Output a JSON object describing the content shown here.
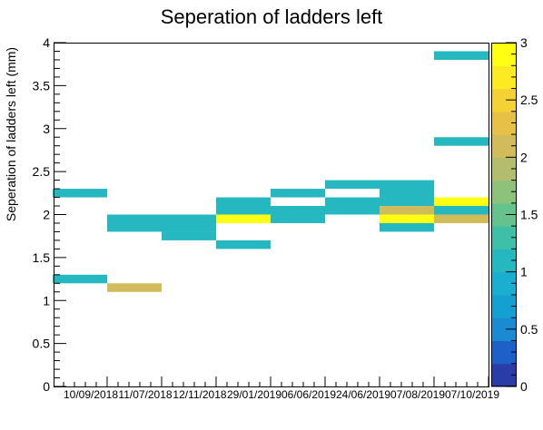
{
  "chart_data": {
    "type": "heatmap",
    "title": "Seperation of ladders left",
    "ylabel": "Seperation of ladders left (mm)",
    "xlabel": "",
    "x_categories": [
      "10/09/2018",
      "11/07/2018",
      "12/11/2018",
      "29/01/2019",
      "06/06/2019",
      "24/06/2019",
      "07/08/2019",
      "07/10/2019"
    ],
    "ylim": [
      0,
      4
    ],
    "y_bin_width": 0.1,
    "y_ticks": [
      "0",
      "0.5",
      "1",
      "1.5",
      "2",
      "2.5",
      "3",
      "3.5",
      "4"
    ],
    "colorbar": {
      "zlim": [
        0,
        3
      ],
      "ticks": [
        "0",
        "0.5",
        "1",
        "1.5",
        "2",
        "2.5",
        "3"
      ]
    },
    "cells": [
      {
        "x": "10/09/2018",
        "y": [
          2.2,
          2.3
        ],
        "z": 1
      },
      {
        "x": "10/09/2018",
        "y": [
          1.2,
          1.3
        ],
        "z": 1
      },
      {
        "x": "11/07/2018",
        "y": [
          1.8,
          2.0
        ],
        "z": 1
      },
      {
        "x": "11/07/2018",
        "y": [
          1.1,
          1.2
        ],
        "z": 2
      },
      {
        "x": "12/11/2018",
        "y": [
          1.8,
          2.0
        ],
        "z": 1
      },
      {
        "x": "12/11/2018",
        "y": [
          1.7,
          1.8
        ],
        "z": 1
      },
      {
        "x": "29/01/2019",
        "y": [
          2.0,
          2.2
        ],
        "z": 1
      },
      {
        "x": "29/01/2019",
        "y": [
          1.9,
          2.0
        ],
        "z": 3
      },
      {
        "x": "29/01/2019",
        "y": [
          1.6,
          1.7
        ],
        "z": 1
      },
      {
        "x": "06/06/2019",
        "y": [
          2.2,
          2.3
        ],
        "z": 1
      },
      {
        "x": "06/06/2019",
        "y": [
          1.9,
          2.1
        ],
        "z": 1
      },
      {
        "x": "24/06/2019",
        "y": [
          2.3,
          2.4
        ],
        "z": 1
      },
      {
        "x": "24/06/2019",
        "y": [
          2.0,
          2.2
        ],
        "z": 1
      },
      {
        "x": "07/08/2019",
        "y": [
          2.1,
          2.4
        ],
        "z": 1
      },
      {
        "x": "07/08/2019",
        "y": [
          2.0,
          2.1
        ],
        "z": 2
      },
      {
        "x": "07/08/2019",
        "y": [
          1.9,
          2.0
        ],
        "z": 3
      },
      {
        "x": "07/08/2019",
        "y": [
          1.8,
          1.9
        ],
        "z": 1
      },
      {
        "x": "07/10/2019",
        "y": [
          3.8,
          3.9
        ],
        "z": 1
      },
      {
        "x": "07/10/2019",
        "y": [
          2.8,
          2.9
        ],
        "z": 1
      },
      {
        "x": "07/10/2019",
        "y": [
          2.1,
          2.2
        ],
        "z": 3
      },
      {
        "x": "07/10/2019",
        "y": [
          2.0,
          2.1
        ],
        "z": 1
      },
      {
        "x": "07/10/2019",
        "y": [
          1.9,
          2.0
        ],
        "z": 2
      }
    ],
    "palette": [
      "#2a3ca8",
      "#1f60c8",
      "#1a8ad2",
      "#14a0d0",
      "#1aaed0",
      "#25b8c0",
      "#3dbfa8",
      "#65c28c",
      "#8dc27a",
      "#b3bd6d",
      "#d2bb5a",
      "#e6c146",
      "#f4d236",
      "#fcea22",
      "#ffff14"
    ]
  }
}
